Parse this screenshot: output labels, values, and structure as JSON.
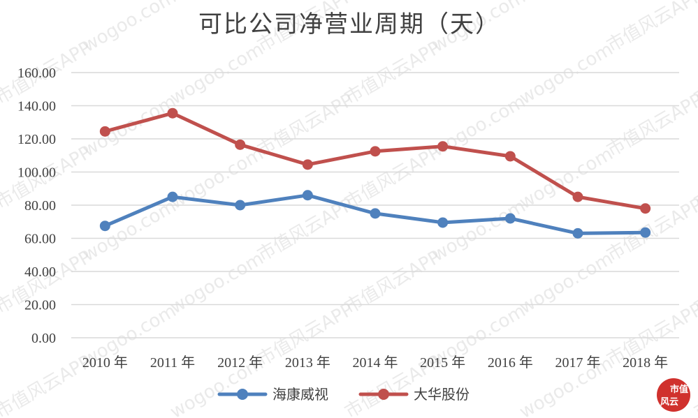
{
  "chart_data": {
    "type": "line",
    "title": "可比公司净营业周期（天）",
    "categories": [
      "2010 年",
      "2011 年",
      "2012 年",
      "2013 年",
      "2014 年",
      "2015 年",
      "2016 年",
      "2017 年",
      "2018 年"
    ],
    "ylim": [
      0,
      160
    ],
    "yticks": [
      "0.00",
      "20.00",
      "40.00",
      "60.00",
      "80.00",
      "100.00",
      "120.00",
      "140.00",
      "160.00"
    ],
    "grid": true,
    "legend_position": "bottom",
    "series": [
      {
        "name": "海康威视",
        "color": "#4f81bd",
        "values": [
          67.5,
          85,
          80,
          86,
          75,
          69.5,
          72,
          63,
          63.5
        ]
      },
      {
        "name": "大华股份",
        "color": "#c0504d",
        "values": [
          124.5,
          135.5,
          116.5,
          104.5,
          112.5,
          115.5,
          109.5,
          85,
          78
        ]
      }
    ]
  },
  "watermark": {
    "site": "wogoo.com",
    "app": "市值风云APP"
  },
  "logo": {
    "line1": "市值",
    "line2": "风云"
  }
}
